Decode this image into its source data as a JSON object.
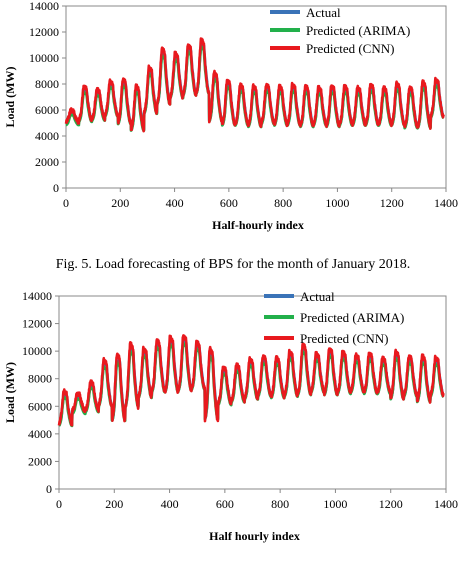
{
  "colors": {
    "actual": "#3a73b8",
    "arima": "#22b04b",
    "cnn": "#e8191e",
    "axis": "#888888"
  },
  "chart_data": [
    {
      "type": "line",
      "xlabel": "Half-hourly index",
      "ylabel": "Load (MW)",
      "xlim": [
        0,
        1400
      ],
      "ylim": [
        0,
        14000
      ],
      "x_ticks": [
        "0",
        "200",
        "400",
        "600",
        "800",
        "1000",
        "1200",
        "1400"
      ],
      "y_ticks": [
        "0",
        "2000",
        "4000",
        "6000",
        "8000",
        "10000",
        "12000",
        "14000"
      ],
      "grid": false,
      "legend_position": "top-right",
      "caption": "Fig. 5.   Load forecasting of BPS for the month of January 2018.",
      "series": [
        {
          "name": "Actual",
          "color_key": "actual"
        },
        {
          "name": "Predicted (ARIMA)",
          "color_key": "arima"
        },
        {
          "name": "Predicted (CNN)",
          "color_key": "cnn"
        }
      ],
      "x": [
        0,
        48,
        96,
        144,
        192,
        240,
        288,
        336,
        384,
        432,
        480,
        528,
        576,
        624,
        672,
        720,
        768,
        816,
        864,
        912,
        960,
        1008,
        1056,
        1104,
        1152,
        1200,
        1248,
        1296,
        1344
      ],
      "daily_peak": [
        5800,
        7500,
        7300,
        7900,
        8000,
        7500,
        8900,
        10300,
        10000,
        10600,
        11000,
        8500,
        7900,
        7600,
        7500,
        7600,
        7500,
        7600,
        7500,
        7400,
        7500,
        7500,
        7400,
        7600,
        7400,
        7700,
        7400,
        7800,
        8000
      ],
      "daily_min": [
        5000,
        5200,
        5300,
        5600,
        5000,
        4500,
        5800,
        6500,
        7000,
        7200,
        7300,
        5200,
        4900,
        4900,
        4800,
        5000,
        4900,
        4900,
        4800,
        4900,
        4800,
        4900,
        4900,
        4900,
        4900,
        4900,
        4700,
        4700,
        5500
      ]
    },
    {
      "type": "line",
      "xlabel": "Half hourly index",
      "ylabel": "Load (MW)",
      "xlim": [
        0,
        1400
      ],
      "ylim": [
        0,
        14000
      ],
      "x_ticks": [
        "0",
        "200",
        "400",
        "600",
        "800",
        "1000",
        "1200",
        "1400"
      ],
      "y_ticks": [
        "0",
        "2000",
        "4000",
        "6000",
        "8000",
        "10000",
        "12000",
        "14000"
      ],
      "grid": false,
      "legend_position": "top-right",
      "series": [
        {
          "name": "Actual",
          "color_key": "actual"
        },
        {
          "name": "Predicted (ARIMA)",
          "color_key": "arima"
        },
        {
          "name": "Predicted (CNN)",
          "color_key": "cnn"
        }
      ],
      "x": [
        0,
        48,
        96,
        144,
        192,
        240,
        288,
        336,
        384,
        432,
        480,
        528,
        576,
        624,
        672,
        720,
        768,
        816,
        864,
        912,
        960,
        1008,
        1056,
        1104,
        1152,
        1200,
        1248,
        1296,
        1344
      ],
      "daily_peak": [
        6800,
        6700,
        7500,
        9000,
        9300,
        10100,
        9800,
        10400,
        10600,
        10700,
        10300,
        9700,
        8500,
        8700,
        9100,
        9300,
        9200,
        9600,
        10100,
        9500,
        9800,
        9600,
        9400,
        9500,
        9200,
        9600,
        9300,
        9300,
        9200
      ],
      "daily_min": [
        4700,
        5600,
        5700,
        6100,
        5000,
        6000,
        6700,
        7100,
        7100,
        7200,
        7300,
        5100,
        6200,
        6400,
        6600,
        6800,
        6700,
        6800,
        6900,
        7100,
        6900,
        7000,
        7100,
        7000,
        7000,
        6600,
        6800,
        6400,
        6800
      ]
    }
  ]
}
